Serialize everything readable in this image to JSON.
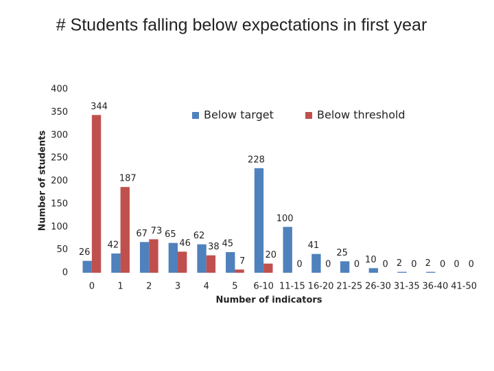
{
  "chart_data": {
    "type": "bar",
    "title": "# Students falling below expectations in first year",
    "y_label": "Number of students",
    "x_label": "Number of indicators",
    "categories": [
      "0",
      "1",
      "2",
      "3",
      "4",
      "5",
      "6-10",
      "11-15",
      "16-20",
      "21-25",
      "26-30",
      "31-35",
      "36-40",
      "41-50"
    ],
    "series": [
      {
        "name": "Below target",
        "color": "#4f81bd",
        "values": [
          26,
          42,
          67,
          65,
          62,
          45,
          228,
          100,
          41,
          25,
          10,
          2,
          2,
          0
        ]
      },
      {
        "name": "Below threshold",
        "color": "#c0504d",
        "values": [
          344,
          187,
          73,
          46,
          38,
          7,
          20,
          0,
          0,
          0,
          0,
          0,
          0,
          0
        ]
      }
    ],
    "ylim": [
      0,
      400
    ],
    "yticks": [
      0,
      50,
      100,
      150,
      200,
      250,
      300,
      350,
      400
    ],
    "grid": false,
    "legend": "top-right"
  }
}
